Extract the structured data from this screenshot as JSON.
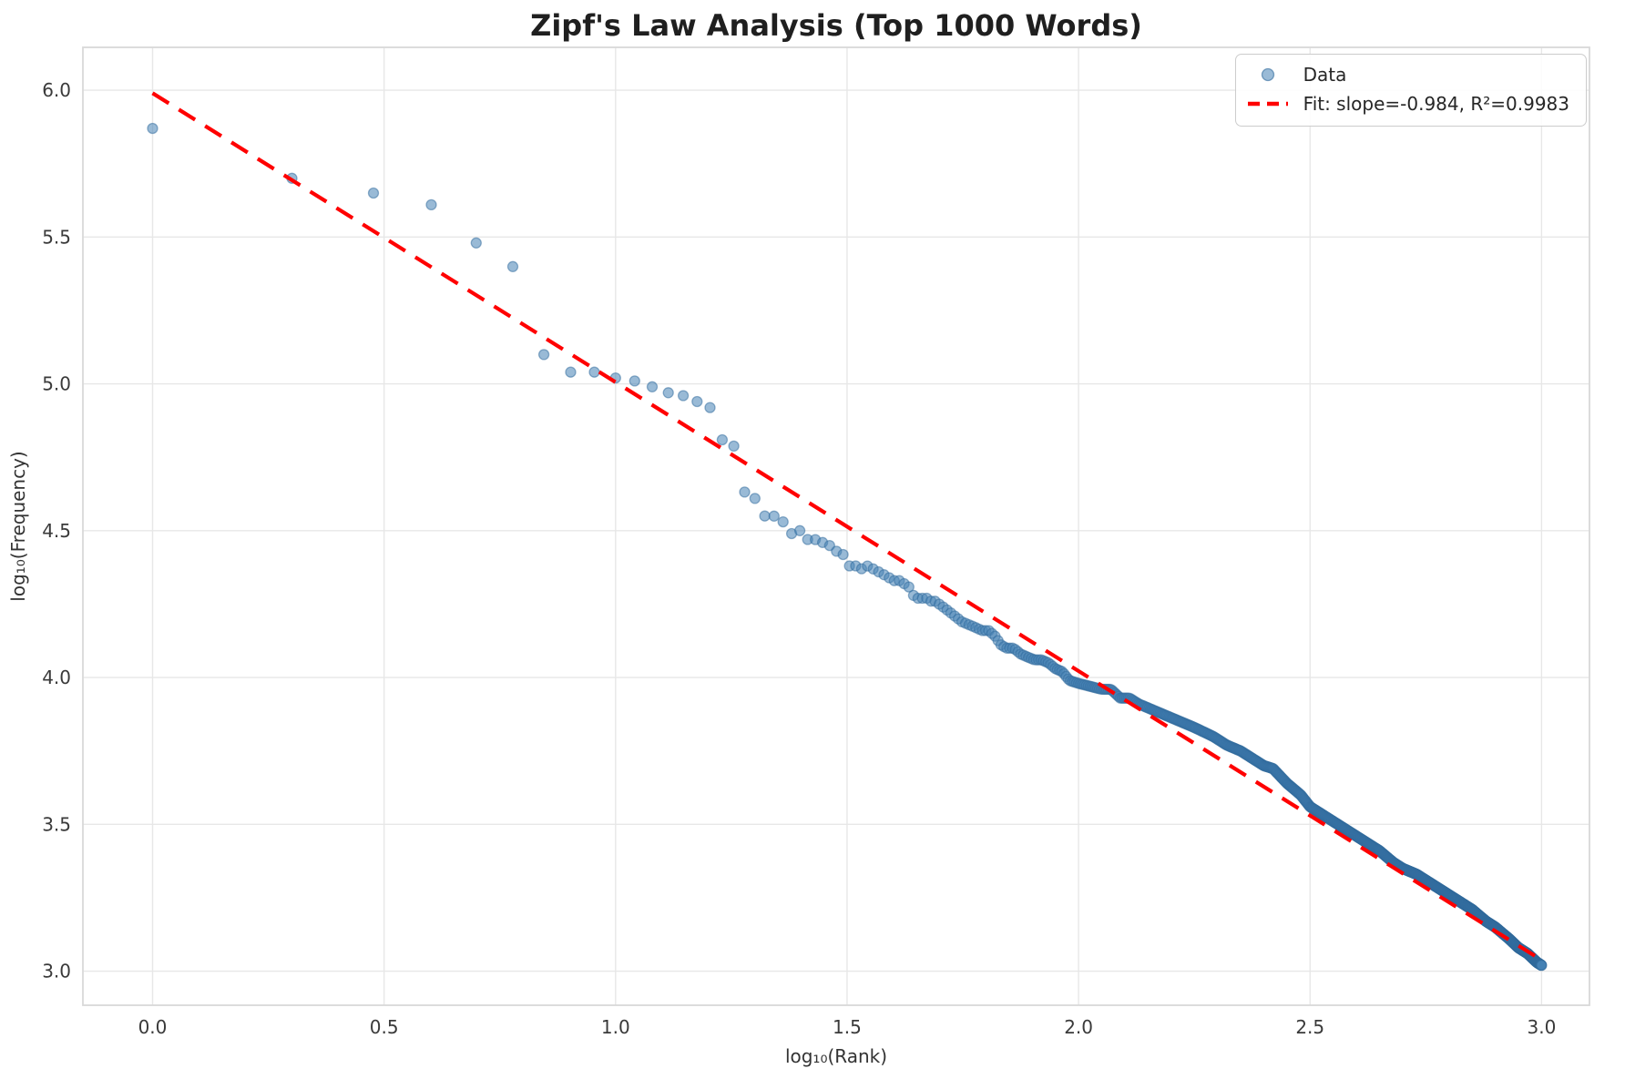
{
  "figure": {
    "title": "Zipf's Law Analysis (Top 1000 Words)"
  },
  "chart_data": {
    "type": "scatter",
    "title": "Zipf's Law Analysis (Top 1000 Words)",
    "xlabel": "log₁₀(Rank)",
    "ylabel": "log₁₀(Frequency)",
    "xlim": [
      -0.1505,
      3.1035
    ],
    "ylim": [
      2.884,
      6.146
    ],
    "grid": true,
    "grid_color": "#e7e7e7",
    "spine_color": "#d9d9d9",
    "background": "#ffffff",
    "x_ticks": {
      "values": [
        0.0,
        0.5,
        1.0,
        1.5,
        2.0,
        2.5,
        3.0
      ],
      "labels": [
        "0.0",
        "0.5",
        "1.0",
        "1.5",
        "2.0",
        "2.5",
        "3.0"
      ]
    },
    "y_ticks": {
      "values": [
        3.0,
        3.5,
        4.0,
        4.5,
        5.0,
        5.5,
        6.0
      ],
      "labels": [
        "3.0",
        "3.5",
        "4.0",
        "4.5",
        "5.0",
        "5.5",
        "6.0"
      ]
    },
    "legend": {
      "position": "upper right",
      "entries": [
        {
          "label": "Data",
          "marker": "circle",
          "color": "#4682b4"
        },
        {
          "label": "Fit: slope=-0.984, R²=0.9983",
          "marker": "dashed-line",
          "color": "#ff0000"
        }
      ]
    },
    "series": [
      {
        "name": "Data",
        "type": "scatter",
        "color": "#4682b4",
        "alpha": 0.55,
        "n_points": 1000,
        "x_definition": "log10(rank) for rank = 1..1000",
        "points": [
          [
            0.0,
            5.87
          ],
          [
            0.301,
            5.7
          ],
          [
            0.477,
            5.65
          ],
          [
            0.602,
            5.61
          ],
          [
            0.699,
            5.48
          ],
          [
            0.778,
            5.4
          ],
          [
            0.845,
            5.1
          ],
          [
            0.903,
            5.04
          ],
          [
            0.954,
            5.04
          ],
          [
            1.0,
            5.02
          ],
          [
            1.041,
            5.01
          ],
          [
            1.079,
            4.99
          ],
          [
            1.114,
            4.97
          ],
          [
            1.146,
            4.96
          ],
          [
            1.176,
            4.94
          ],
          [
            1.204,
            4.92
          ],
          [
            1.23,
            4.81
          ],
          [
            1.255,
            4.79
          ],
          [
            1.279,
            4.63
          ],
          [
            1.301,
            4.61
          ],
          [
            1.322,
            4.55
          ],
          [
            1.342,
            4.55
          ],
          [
            1.362,
            4.53
          ],
          [
            1.38,
            4.49
          ],
          [
            1.398,
            4.5
          ],
          [
            1.415,
            4.47
          ],
          [
            1.431,
            4.47
          ],
          [
            1.447,
            4.46
          ],
          [
            1.462,
            4.45
          ],
          [
            1.477,
            4.43
          ],
          [
            1.491,
            4.42
          ],
          [
            1.505,
            4.38
          ],
          [
            1.519,
            4.38
          ],
          [
            1.531,
            4.37
          ],
          [
            1.544,
            4.38
          ],
          [
            1.556,
            4.37
          ],
          [
            1.568,
            4.36
          ],
          [
            1.58,
            4.35
          ],
          [
            1.591,
            4.34
          ],
          [
            1.602,
            4.33
          ],
          [
            1.613,
            4.33
          ],
          [
            1.623,
            4.32
          ],
          [
            1.633,
            4.31
          ],
          [
            1.643,
            4.28
          ],
          [
            1.653,
            4.27
          ],
          [
            1.663,
            4.27
          ],
          [
            1.672,
            4.27
          ],
          [
            1.681,
            4.26
          ],
          [
            1.69,
            4.26
          ],
          [
            1.699,
            4.25
          ],
          [
            1.716,
            4.23
          ],
          [
            1.732,
            4.21
          ],
          [
            1.748,
            4.19
          ],
          [
            1.763,
            4.18
          ],
          [
            1.778,
            4.17
          ],
          [
            1.792,
            4.16
          ],
          [
            1.806,
            4.16
          ],
          [
            1.82,
            4.14
          ],
          [
            1.833,
            4.11
          ],
          [
            1.845,
            4.1
          ],
          [
            1.86,
            4.1
          ],
          [
            1.875,
            4.08
          ],
          [
            1.89,
            4.07
          ],
          [
            1.905,
            4.06
          ],
          [
            1.92,
            4.06
          ],
          [
            1.935,
            4.05
          ],
          [
            1.95,
            4.03
          ],
          [
            1.965,
            4.02
          ],
          [
            1.98,
            3.99
          ],
          [
            2.0,
            3.98
          ],
          [
            2.025,
            3.97
          ],
          [
            2.05,
            3.96
          ],
          [
            2.07,
            3.96
          ],
          [
            2.09,
            3.93
          ],
          [
            2.11,
            3.93
          ],
          [
            2.13,
            3.91
          ],
          [
            2.16,
            3.89
          ],
          [
            2.19,
            3.87
          ],
          [
            2.22,
            3.85
          ],
          [
            2.25,
            3.83
          ],
          [
            2.29,
            3.8
          ],
          [
            2.32,
            3.77
          ],
          [
            2.35,
            3.75
          ],
          [
            2.38,
            3.72
          ],
          [
            2.4,
            3.7
          ],
          [
            2.42,
            3.69
          ],
          [
            2.45,
            3.64
          ],
          [
            2.48,
            3.6
          ],
          [
            2.5,
            3.56
          ],
          [
            2.52,
            3.54
          ],
          [
            2.55,
            3.51
          ],
          [
            2.58,
            3.48
          ],
          [
            2.6,
            3.46
          ],
          [
            2.62,
            3.44
          ],
          [
            2.65,
            3.41
          ],
          [
            2.68,
            3.37
          ],
          [
            2.7,
            3.35
          ],
          [
            2.73,
            3.33
          ],
          [
            2.75,
            3.31
          ],
          [
            2.78,
            3.28
          ],
          [
            2.8,
            3.26
          ],
          [
            2.83,
            3.23
          ],
          [
            2.85,
            3.21
          ],
          [
            2.88,
            3.17
          ],
          [
            2.9,
            3.15
          ],
          [
            2.93,
            3.11
          ],
          [
            2.95,
            3.08
          ],
          [
            2.97,
            3.06
          ],
          [
            2.99,
            3.03
          ],
          [
            3.0,
            3.02
          ]
        ]
      },
      {
        "name": "Fit",
        "type": "line",
        "style": "dashed",
        "color": "#ff0000",
        "slope": -0.984,
        "intercept": 5.99,
        "r_squared": 0.9983,
        "x_range": [
          0.0,
          3.0
        ]
      }
    ]
  }
}
